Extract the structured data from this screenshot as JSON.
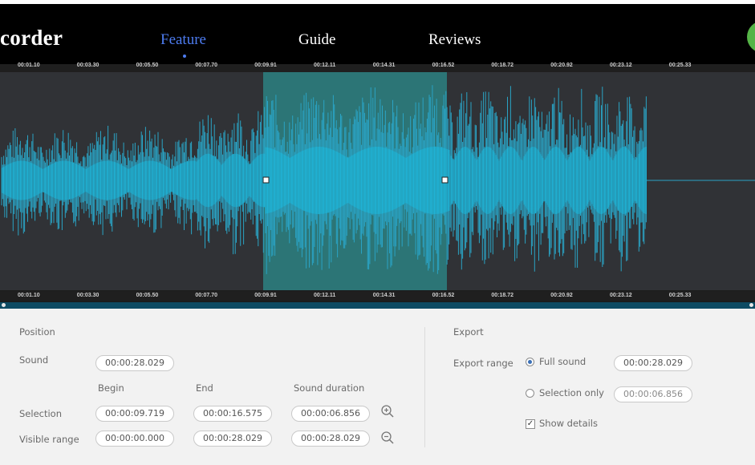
{
  "nav": {
    "brand": "corder",
    "items": [
      "Feature",
      "Guide",
      "Reviews"
    ],
    "active": "Feature"
  },
  "timeline": {
    "ticks": [
      "00:01.10",
      "00:03.30",
      "00:05.50",
      "00:07.70",
      "00:09.91",
      "00:12.11",
      "00:14.31",
      "00:16.52",
      "00:18.72",
      "00:20.92",
      "00:23.12",
      "00:25.33"
    ]
  },
  "colors": {
    "waveform": "#2aa3c4",
    "waveform_selected": "#1fb3d6",
    "selection_overlay": "#2b8c8c",
    "accent": "#4d7cf0"
  },
  "position": {
    "title": "Position",
    "sound_label": "Sound",
    "sound_value": "00:00:28.029",
    "col_begin": "Begin",
    "col_end": "End",
    "col_duration": "Sound duration",
    "selection_label": "Selection",
    "selection_begin": "00:00:09.719",
    "selection_end": "00:00:16.575",
    "selection_duration": "00:00:06.856",
    "visible_label": "Visible range",
    "visible_begin": "00:00:00.000",
    "visible_end": "00:00:28.029",
    "visible_duration": "00:00:28.029"
  },
  "export": {
    "title": "Export",
    "range_label": "Export range",
    "full_sound_label": "Full sound",
    "full_sound_value": "00:00:28.029",
    "selection_only_label": "Selection only",
    "selection_only_value": "00:00:06.856",
    "show_details_label": "Show details",
    "range_selected": "Full sound",
    "show_details_checked": true
  }
}
